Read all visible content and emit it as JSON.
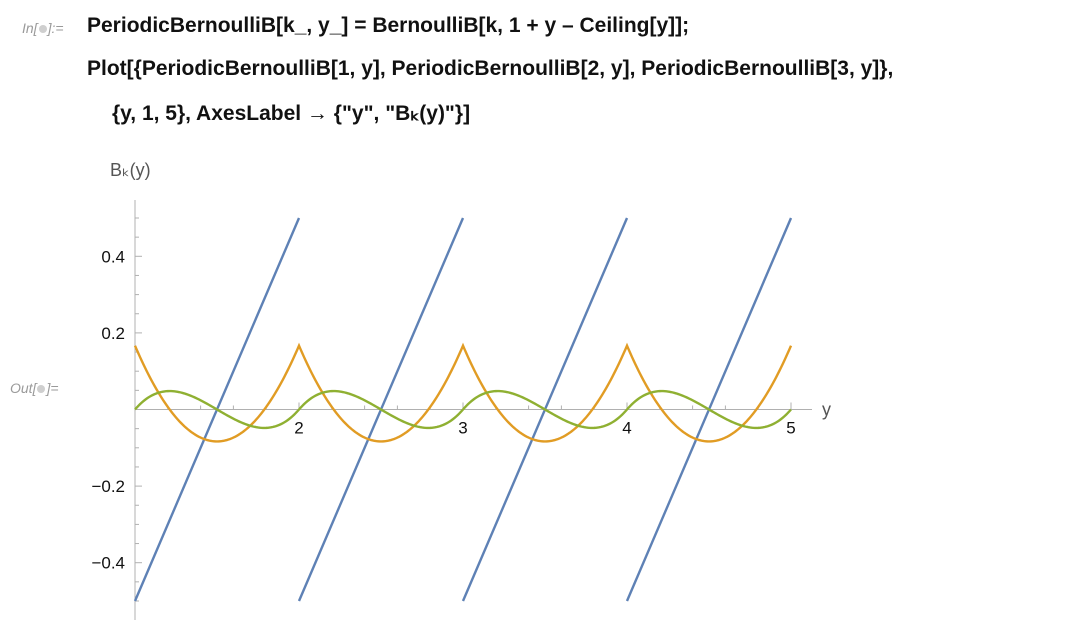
{
  "cell": {
    "in_label": "In[",
    "in_suffix": "]:=",
    "out_label": "Out[",
    "out_suffix": "]=",
    "code_line1": "PeriodicBernoulliB[k_, y_] = BernoulliB[k, 1 + y – Ceiling[y]];",
    "code_line2": "Plot[{PeriodicBernoulliB[1, y], PeriodicBernoulliB[2, y], PeriodicBernoulliB[3, y]},",
    "code_line3": "{y, 1, 5}, AxesLabel → {\"y\", \"Bₖ(y)\"}]"
  },
  "chart_data": {
    "type": "line",
    "xlabel": "y",
    "ylabel": "Bₖ(y)",
    "xlim": [
      1,
      5
    ],
    "ylim": [
      -0.5,
      0.5
    ],
    "x_ticks": [
      2,
      3,
      4,
      5
    ],
    "y_ticks": [
      -0.4,
      -0.2,
      0.2,
      0.4
    ],
    "x_tick_labels": [
      "2",
      "3",
      "4",
      "5"
    ],
    "y_tick_labels": [
      "−0.4",
      "−0.2",
      "0.2",
      "0.4"
    ],
    "series": [
      {
        "k": 1,
        "color": "#5e81b5",
        "x": [
          1,
          2,
          2,
          3,
          3,
          4,
          4,
          5
        ],
        "y": [
          -0.5,
          0.5,
          -0.5,
          0.5,
          -0.5,
          0.5,
          -0.5,
          0.5
        ]
      },
      {
        "k": 2,
        "color": "#e19c24",
        "x": [
          1,
          1.25,
          1.5,
          1.75,
          2,
          2.25,
          2.5,
          2.75,
          3,
          3.25,
          3.5,
          3.75,
          4,
          4.25,
          4.5,
          4.75,
          5
        ],
        "y": [
          0.1667,
          -0.0208,
          -0.0833,
          -0.0208,
          0.1667,
          -0.0208,
          -0.0833,
          -0.0208,
          0.1667,
          -0.0208,
          -0.0833,
          -0.0208,
          0.1667,
          -0.0208,
          -0.0833,
          -0.0208,
          0.1667
        ]
      },
      {
        "k": 3,
        "color": "#8fb032",
        "x": [
          1,
          1.2113,
          1.5,
          1.7887,
          2,
          2.2113,
          2.5,
          2.7887,
          3,
          3.2113,
          3.5,
          3.7887,
          4,
          4.2113,
          4.5,
          4.7887,
          5
        ],
        "y": [
          0,
          0.0481,
          0,
          -0.0481,
          0,
          0.0481,
          0,
          -0.0481,
          0,
          0.0481,
          0,
          -0.0481,
          0,
          0.0481,
          0,
          -0.0481,
          0
        ]
      }
    ],
    "grid": false
  }
}
